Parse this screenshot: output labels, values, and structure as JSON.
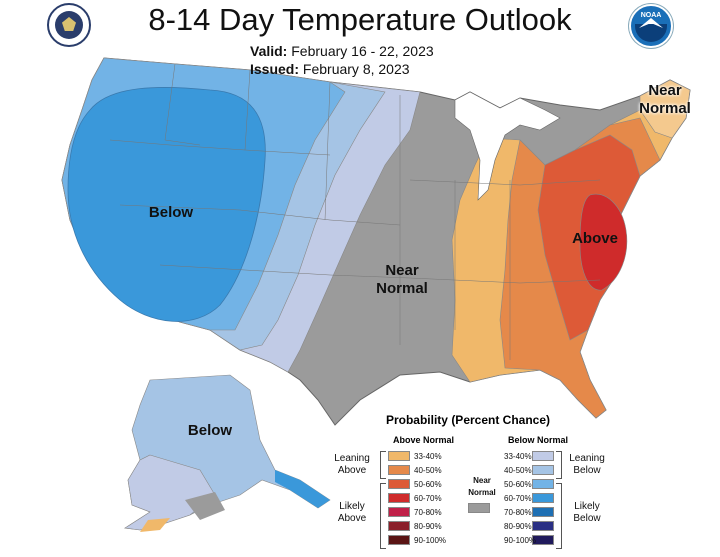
{
  "title": "8-14 Day Temperature Outlook",
  "valid_label": "Valid:",
  "valid_value": "February 16 - 22, 2023",
  "issued_label": "Issued:",
  "issued_value": "February 8, 2023",
  "logo_right_text": "NOAA",
  "regions": {
    "west_below": "Below",
    "central_near": "Near\nNormal",
    "east_above": "Above",
    "ne_near": "Near\nNormal",
    "alaska_below": "Below"
  },
  "legend": {
    "title": "Probability (Percent Chance)",
    "above_header": "Above Normal",
    "below_header": "Below Normal",
    "near_normal": "Near\nNormal",
    "leaning_above": "Leaning\nAbove",
    "likely_above": "Likely\nAbove",
    "leaning_below": "Leaning\nBelow",
    "likely_below": "Likely\nBelow",
    "above": [
      {
        "label": "33-40%",
        "color": "#f0b86a"
      },
      {
        "label": "40-50%",
        "color": "#e5894a"
      },
      {
        "label": "50-60%",
        "color": "#dd5a37"
      },
      {
        "label": "60-70%",
        "color": "#cf2b2b"
      },
      {
        "label": "70-80%",
        "color": "#c02048"
      },
      {
        "label": "80-90%",
        "color": "#8b1f2a"
      },
      {
        "label": "90-100%",
        "color": "#5a1414"
      }
    ],
    "below": [
      {
        "label": "33-40%",
        "color": "#c1cbe6"
      },
      {
        "label": "40-50%",
        "color": "#a5c4e5"
      },
      {
        "label": "50-60%",
        "color": "#72b3e6"
      },
      {
        "label": "60-70%",
        "color": "#3a98da"
      },
      {
        "label": "70-80%",
        "color": "#1e6fb3"
      },
      {
        "label": "80-90%",
        "color": "#2a2f84"
      },
      {
        "label": "90-100%",
        "color": "#201a5c"
      }
    ],
    "near_color": "#9b9b9b"
  }
}
